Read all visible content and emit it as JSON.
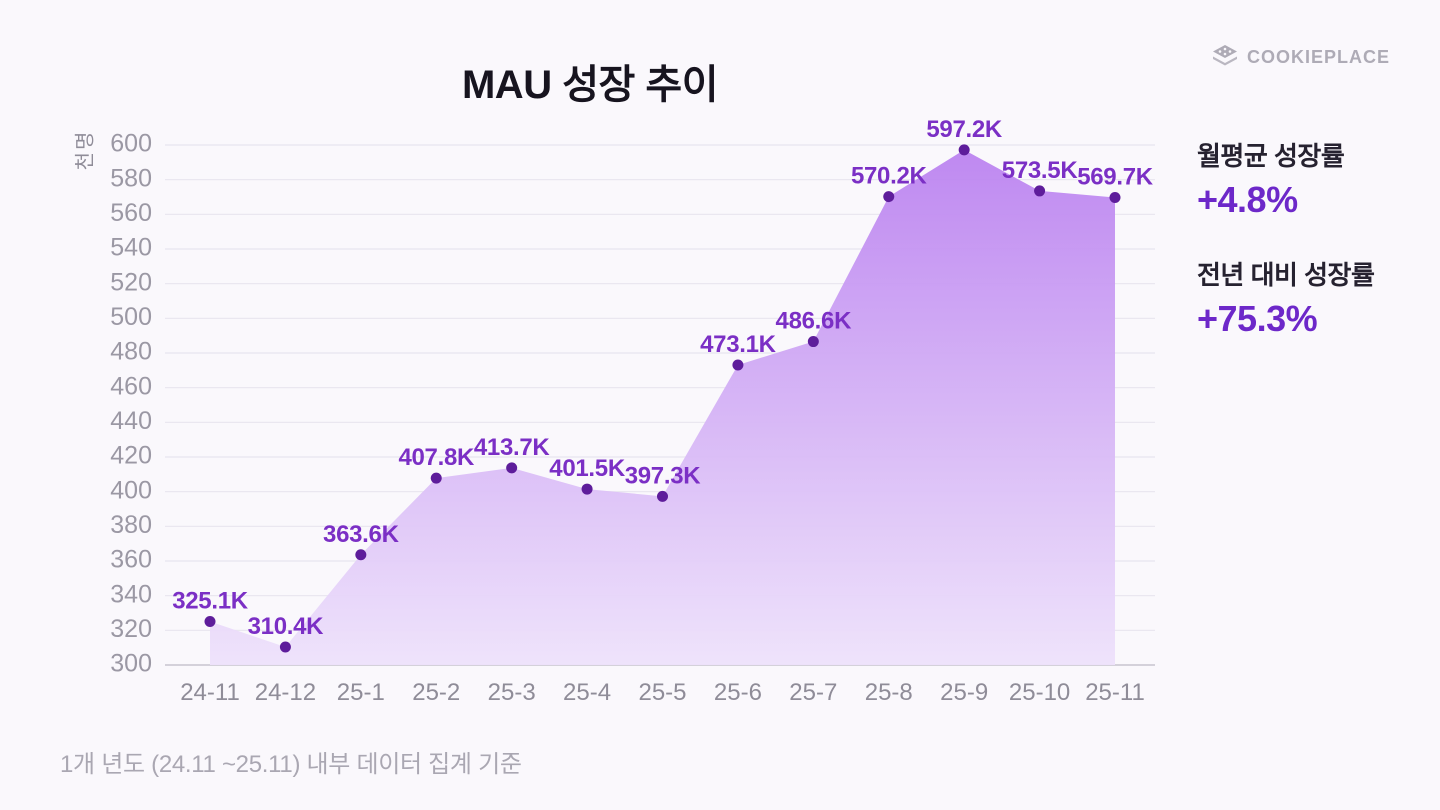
{
  "header": {
    "logo_text": "COOKIEPLACE"
  },
  "chart_data": {
    "type": "area",
    "title": "MAU 성장 추이",
    "ylabel": "천명",
    "categories": [
      "24-11",
      "24-12",
      "25-1",
      "25-2",
      "25-3",
      "25-4",
      "25-5",
      "25-6",
      "25-7",
      "25-8",
      "25-9",
      "25-10",
      "25-11"
    ],
    "values": [
      325.1,
      310.4,
      363.6,
      407.8,
      413.7,
      401.5,
      397.3,
      473.1,
      486.6,
      570.2,
      597.2,
      573.5,
      569.7
    ],
    "point_labels": [
      "325.1K",
      "310.4K",
      "363.6K",
      "407.8K",
      "413.7K",
      "401.5K",
      "397.3K",
      "473.1K",
      "486.6K",
      "570.2K",
      "597.2K",
      "573.5K",
      "569.7K"
    ],
    "ylim": [
      300,
      600
    ],
    "ytick_step": 20,
    "grid": true,
    "legend": "none"
  },
  "stats": [
    {
      "label": "월평균 성장률",
      "value": "+4.8%"
    },
    {
      "label": "전년 대비 성장률",
      "value": "+75.3%"
    }
  ],
  "footer": {
    "note": "1개 년도 (24.11 ~25.11) 내부 데이터 집계 기준"
  },
  "colors": {
    "background": "#faf8fc",
    "accent": "#6d28c9",
    "area_top": "#bb82f0",
    "area_bottom": "#eee2fb",
    "dot": "#5e1d9b",
    "point_label": "#7b2fc5",
    "grid_line": "#e8e5ef",
    "axis_line": "#c7c4cf",
    "tick_text": "#9b98a4",
    "logo_gray": "#aeabb6"
  }
}
